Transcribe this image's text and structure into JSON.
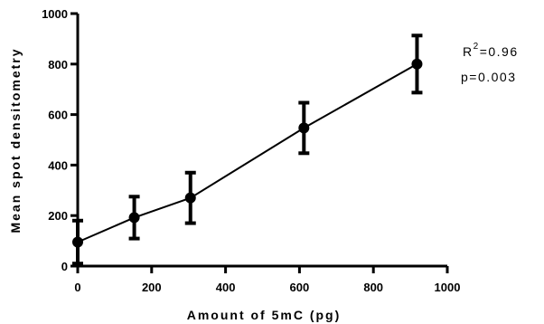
{
  "chart_data": {
    "type": "scatter",
    "title": "",
    "xlabel": "Amount of 5mC (pg)",
    "ylabel": "Mean spot densitometry",
    "xlim": [
      0,
      1000
    ],
    "ylim": [
      0,
      1000
    ],
    "x_ticks": [
      "0",
      "200",
      "400",
      "600",
      "800",
      "1000"
    ],
    "y_ticks": [
      "0",
      "200",
      "400",
      "600",
      "800",
      "1000"
    ],
    "grid": false,
    "series": [
      {
        "x": [
          0,
          153,
          305,
          612,
          918
        ],
        "y": [
          95,
          192,
          270,
          547,
          800
        ],
        "error": [
          85,
          83,
          100,
          100,
          113
        ],
        "line": true,
        "color": "#000000"
      }
    ],
    "annotations": {
      "r_label": "R",
      "r_exponent": "2",
      "r_value": "=0.96",
      "p_value": "p=0.003"
    }
  }
}
